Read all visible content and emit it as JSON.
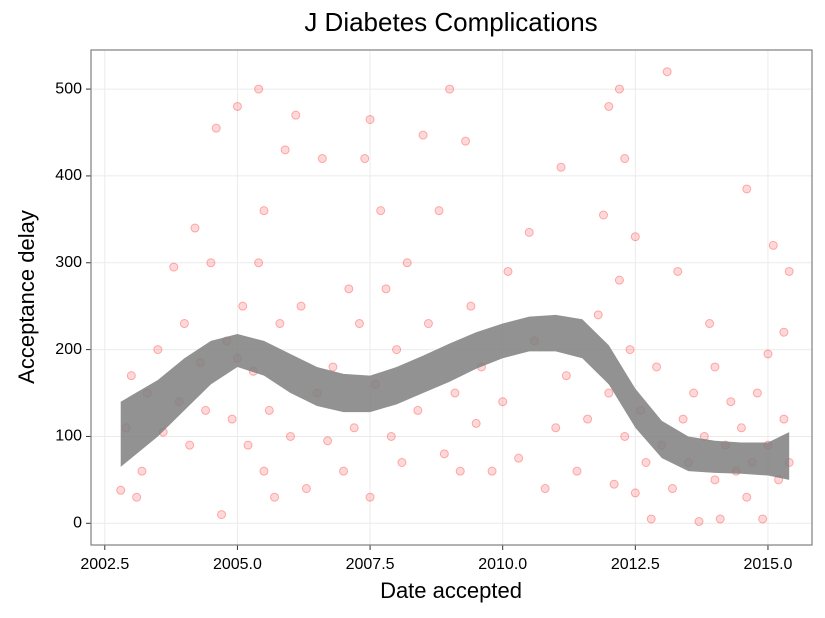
{
  "chart_data": {
    "type": "scatter",
    "title": "J Diabetes Complications",
    "x_label": "Date accepted",
    "y_label": "Acceptance delay",
    "color": "#ff0000",
    "x": [
      2002.8,
      2002.9,
      2003.0,
      2003.1,
      2003.2,
      2003.3,
      2003.5,
      2003.6,
      2003.8,
      2003.9,
      2004.0,
      2004.1,
      2004.2,
      2004.3,
      2004.4,
      2004.5,
      2004.6,
      2004.7,
      2004.8,
      2004.9,
      2005.0,
      2005.0,
      2005.1,
      2005.2,
      2005.3,
      2005.4,
      2005.4,
      2005.5,
      2005.5,
      2005.6,
      2005.7,
      2005.8,
      2005.9,
      2006.0,
      2006.1,
      2006.2,
      2006.3,
      2006.5,
      2006.6,
      2006.7,
      2006.8,
      2007.0,
      2007.1,
      2007.2,
      2007.3,
      2007.4,
      2007.5,
      2007.5,
      2007.6,
      2007.7,
      2007.8,
      2007.9,
      2008.0,
      2008.1,
      2008.2,
      2008.4,
      2008.5,
      2008.6,
      2008.8,
      2008.9,
      2009.0,
      2009.1,
      2009.2,
      2009.3,
      2009.4,
      2009.5,
      2009.6,
      2009.8,
      2010.0,
      2010.1,
      2010.3,
      2010.5,
      2010.6,
      2010.8,
      2011.0,
      2011.1,
      2011.2,
      2011.4,
      2011.6,
      2011.8,
      2011.9,
      2012.0,
      2012.0,
      2012.1,
      2012.2,
      2012.2,
      2012.3,
      2012.3,
      2012.4,
      2012.5,
      2012.5,
      2012.6,
      2012.7,
      2012.8,
      2012.9,
      2013.0,
      2013.1,
      2013.2,
      2013.3,
      2013.4,
      2013.5,
      2013.6,
      2013.7,
      2013.8,
      2013.9,
      2014.0,
      2014.0,
      2014.1,
      2014.2,
      2014.3,
      2014.4,
      2014.5,
      2014.6,
      2014.6,
      2014.7,
      2014.8,
      2014.9,
      2015.0,
      2015.0,
      2015.1,
      2015.2,
      2015.3,
      2015.3,
      2015.4,
      2015.4
    ],
    "values": [
      38,
      110,
      170,
      30,
      60,
      150,
      200,
      105,
      295,
      140,
      230,
      90,
      340,
      185,
      130,
      300,
      455,
      10,
      210,
      120,
      480,
      190,
      250,
      90,
      175,
      500,
      300,
      60,
      360,
      130,
      30,
      230,
      430,
      100,
      470,
      250,
      40,
      150,
      420,
      95,
      180,
      60,
      270,
      110,
      230,
      420,
      465,
      30,
      160,
      360,
      270,
      100,
      200,
      70,
      300,
      130,
      447,
      230,
      360,
      80,
      500,
      150,
      60,
      440,
      250,
      115,
      180,
      60,
      140,
      290,
      75,
      335,
      210,
      40,
      110,
      410,
      170,
      60,
      120,
      240,
      355,
      480,
      150,
      45,
      500,
      280,
      100,
      420,
      200,
      35,
      330,
      130,
      70,
      5,
      180,
      90,
      520,
      40,
      290,
      120,
      70,
      150,
      2,
      100,
      230,
      50,
      180,
      5,
      90,
      140,
      60,
      110,
      385,
      30,
      70,
      150,
      5,
      90,
      195,
      320,
      50,
      220,
      120,
      290,
      70
    ],
    "band": {
      "color": "#7f7f7f",
      "x": [
        2002.8,
        2003.5,
        2004.0,
        2004.5,
        2005.0,
        2005.5,
        2006.0,
        2006.5,
        2007.0,
        2007.5,
        2008.0,
        2008.5,
        2009.0,
        2009.5,
        2010.0,
        2010.5,
        2011.0,
        2011.5,
        2012.0,
        2012.5,
        2013.0,
        2013.5,
        2014.0,
        2014.5,
        2015.0,
        2015.4
      ],
      "lower": [
        65,
        100,
        130,
        160,
        180,
        170,
        150,
        135,
        128,
        128,
        137,
        150,
        163,
        178,
        190,
        198,
        198,
        190,
        160,
        110,
        75,
        60,
        58,
        57,
        55,
        50
      ],
      "upper": [
        140,
        165,
        190,
        210,
        218,
        210,
        195,
        180,
        172,
        170,
        180,
        193,
        207,
        220,
        230,
        238,
        240,
        235,
        205,
        155,
        118,
        100,
        95,
        93,
        93,
        105
      ]
    },
    "xlim": [
      2002.24,
      2015.83
    ],
    "ylim": [
      -25,
      545
    ],
    "xticks": [
      {
        "value": 2002.5,
        "label": "2002.5"
      },
      {
        "value": 2005,
        "label": "2005.0"
      },
      {
        "value": 2007.5,
        "label": "2007.5"
      },
      {
        "value": 2010,
        "label": "2010.0"
      },
      {
        "value": 2012.5,
        "label": "2012.5"
      },
      {
        "value": 2015,
        "label": "2015.0"
      }
    ],
    "yticks": [
      0,
      100,
      200,
      300,
      400,
      500
    ],
    "grid": true
  }
}
